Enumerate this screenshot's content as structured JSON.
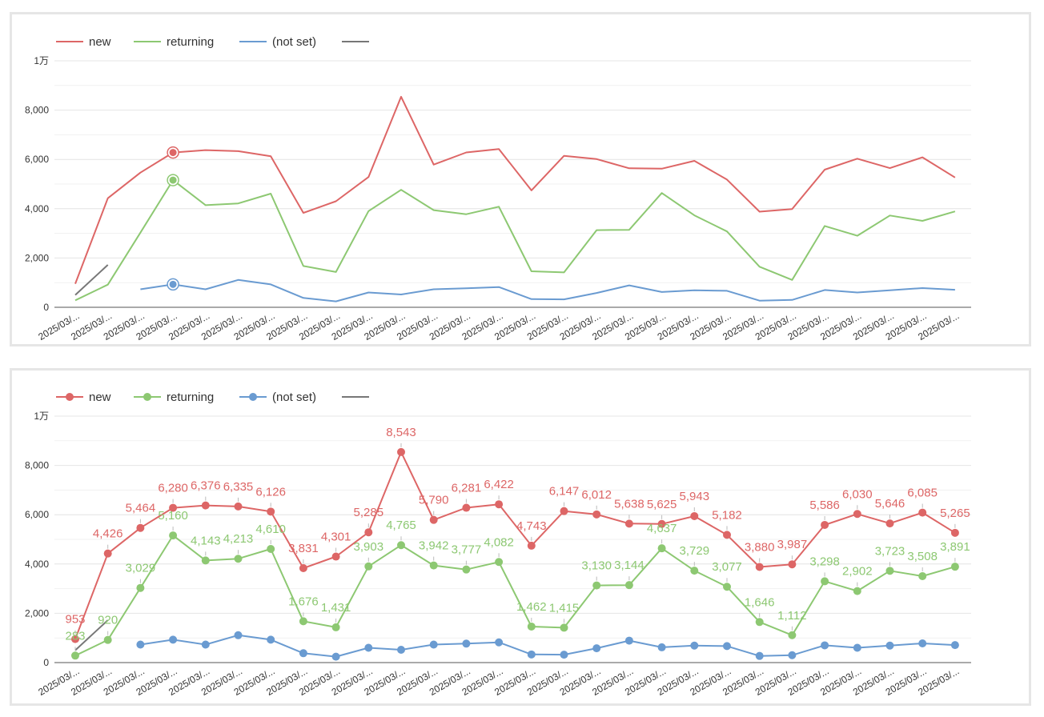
{
  "colors": {
    "new": "#dd6666",
    "returning": "#8dc872",
    "not_set": "#6a9bd1",
    "extra": "#777777",
    "grid": "#e8e8e8",
    "axis": "#555555",
    "text": "#333333"
  },
  "chart_data": [
    {
      "type": "line",
      "title": "",
      "show_markers": false,
      "show_data_labels": false,
      "categories": [
        "2025/03/...",
        "2025/03/...",
        "2025/03/...",
        "2025/03/...",
        "2025/03/...",
        "2025/03/...",
        "2025/03/...",
        "2025/03/...",
        "2025/03/...",
        "2025/03/...",
        "2025/03/...",
        "2025/03/...",
        "2025/03/...",
        "2025/03/...",
        "2025/03/...",
        "2025/03/...",
        "2025/03/...",
        "2025/03/...",
        "2025/03/...",
        "2025/03/...",
        "2025/03/...",
        "2025/03/...",
        "2025/03/...",
        "2025/03/...",
        "2025/03/...",
        "2025/03/...",
        "2025/03/...",
        "2025/03/..."
      ],
      "y_ticks": [
        {
          "value": 0,
          "label": "0"
        },
        {
          "value": 2000,
          "label": "2,000"
        },
        {
          "value": 4000,
          "label": "4,000"
        },
        {
          "value": 6000,
          "label": "6,000"
        },
        {
          "value": 8000,
          "label": "8,000"
        },
        {
          "value": 10000,
          "label": "1万"
        }
      ],
      "ylim": [
        0,
        10000
      ],
      "legend": [
        {
          "key": "new",
          "label": "new"
        },
        {
          "key": "returning",
          "label": "returning"
        },
        {
          "key": "not_set",
          "label": "(not set)"
        },
        {
          "key": "extra",
          "label": ""
        }
      ],
      "legend_position": "top-left",
      "highlight_index": 3,
      "series": [
        {
          "key": "new",
          "name": "new",
          "values": [
            953,
            4426,
            5464,
            6280,
            6376,
            6335,
            6126,
            3831,
            4301,
            5285,
            8543,
            5790,
            6281,
            6422,
            4743,
            6147,
            6012,
            5638,
            5625,
            5943,
            5182,
            3880,
            3987,
            5586,
            6030,
            5646,
            6085,
            5265
          ]
        },
        {
          "key": "returning",
          "name": "returning",
          "values": [
            283,
            920,
            3029,
            5160,
            4143,
            4213,
            4610,
            1676,
            1431,
            3903,
            4765,
            3942,
            3777,
            4082,
            1462,
            1415,
            3130,
            3144,
            4637,
            3729,
            3077,
            1646,
            1112,
            3298,
            2902,
            3723,
            3508,
            3891
          ]
        },
        {
          "key": "not_set",
          "name": "(not set)",
          "values": [
            null,
            null,
            730,
            930,
            730,
            1110,
            930,
            380,
            240,
            600,
            520,
            730,
            770,
            820,
            330,
            320,
            580,
            890,
            620,
            690,
            670,
            270,
            300,
            700,
            600,
            690,
            780,
            710
          ]
        },
        {
          "key": "extra",
          "name": "",
          "values": [
            500,
            1720,
            null,
            null,
            null,
            null,
            null,
            null,
            null,
            null,
            null,
            null,
            null,
            null,
            null,
            null,
            null,
            null,
            null,
            null,
            null,
            null,
            null,
            null,
            null,
            null,
            null,
            null
          ]
        }
      ]
    },
    {
      "type": "line",
      "title": "",
      "show_markers": true,
      "show_data_labels": true,
      "categories": [
        "2025/03/...",
        "2025/03/...",
        "2025/03/...",
        "2025/03/...",
        "2025/03/...",
        "2025/03/...",
        "2025/03/...",
        "2025/03/...",
        "2025/03/...",
        "2025/03/...",
        "2025/03/...",
        "2025/03/...",
        "2025/03/...",
        "2025/03/...",
        "2025/03/...",
        "2025/03/...",
        "2025/03/...",
        "2025/03/...",
        "2025/03/...",
        "2025/03/...",
        "2025/03/...",
        "2025/03/...",
        "2025/03/...",
        "2025/03/...",
        "2025/03/...",
        "2025/03/...",
        "2025/03/...",
        "2025/03/..."
      ],
      "y_ticks": [
        {
          "value": 0,
          "label": "0"
        },
        {
          "value": 2000,
          "label": "2,000"
        },
        {
          "value": 4000,
          "label": "4,000"
        },
        {
          "value": 6000,
          "label": "6,000"
        },
        {
          "value": 8000,
          "label": "8,000"
        },
        {
          "value": 10000,
          "label": "1万"
        }
      ],
      "ylim": [
        0,
        10000
      ],
      "legend": [
        {
          "key": "new",
          "label": "new"
        },
        {
          "key": "returning",
          "label": "returning"
        },
        {
          "key": "not_set",
          "label": "(not set)"
        },
        {
          "key": "extra",
          "label": ""
        }
      ],
      "legend_position": "top-left",
      "series": [
        {
          "key": "new",
          "name": "new",
          "values": [
            953,
            4426,
            5464,
            6280,
            6376,
            6335,
            6126,
            3831,
            4301,
            5285,
            8543,
            5790,
            6281,
            6422,
            4743,
            6147,
            6012,
            5638,
            5625,
            5943,
            5182,
            3880,
            3987,
            5586,
            6030,
            5646,
            6085,
            5265
          ],
          "labels": [
            "953",
            "4,426",
            "5,464",
            "6,280",
            "6,376",
            "6,335",
            "6,126",
            "3,831",
            "4,301",
            "5,285",
            "8,543",
            "5,790",
            "6,281",
            "6,422",
            "4,743",
            "6,147",
            "6,012",
            "5,638",
            "5,625",
            "5,943",
            "5,182",
            "3,880",
            "3,987",
            "5,586",
            "6,030",
            "5,646",
            "6,085",
            "5,265"
          ]
        },
        {
          "key": "returning",
          "name": "returning",
          "values": [
            283,
            920,
            3029,
            5160,
            4143,
            4213,
            4610,
            1676,
            1431,
            3903,
            4765,
            3942,
            3777,
            4082,
            1462,
            1415,
            3130,
            3144,
            4637,
            3729,
            3077,
            1646,
            1112,
            3298,
            2902,
            3723,
            3508,
            3891
          ],
          "labels": [
            "283",
            "920",
            "3,029",
            "5,160",
            "4,143",
            "4,213",
            "4,610",
            "1,676",
            "1,431",
            "3,903",
            "4,765",
            "3,942",
            "3,777",
            "4,082",
            "1,462",
            "1,415",
            "3,130",
            "3,144",
            "4,637",
            "3,729",
            "3,077",
            "1,646",
            "1,112",
            "3,298",
            "2,902",
            "3,723",
            "3,508",
            "3,891"
          ]
        },
        {
          "key": "not_set",
          "name": "(not set)",
          "values": [
            null,
            null,
            730,
            930,
            730,
            1110,
            930,
            380,
            240,
            600,
            520,
            730,
            770,
            820,
            330,
            320,
            580,
            890,
            620,
            690,
            670,
            270,
            300,
            700,
            600,
            690,
            780,
            710
          ],
          "labels": null
        },
        {
          "key": "extra",
          "name": "",
          "values": [
            500,
            1720,
            null,
            null,
            null,
            null,
            null,
            null,
            null,
            null,
            null,
            null,
            null,
            null,
            null,
            null,
            null,
            null,
            null,
            null,
            null,
            null,
            null,
            null,
            null,
            null,
            null,
            null
          ],
          "labels": null
        }
      ]
    }
  ]
}
